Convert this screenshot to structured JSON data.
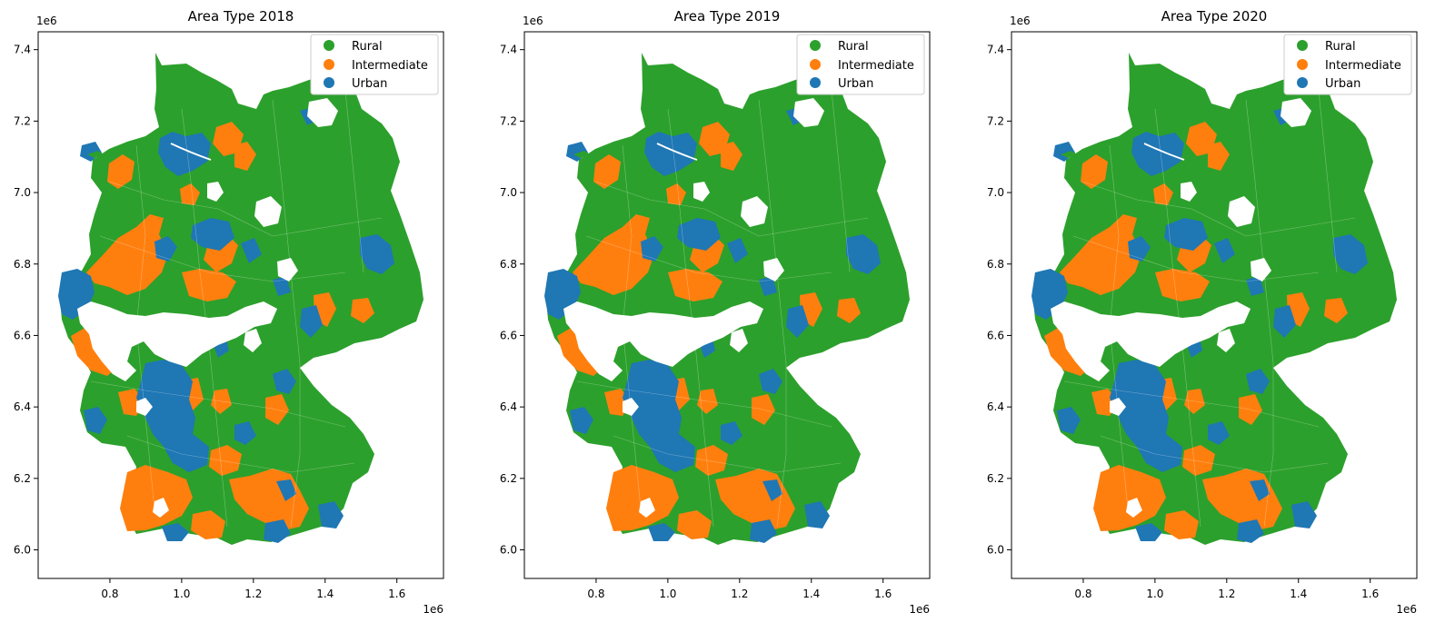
{
  "figure": {
    "legend_entries": [
      {
        "label": "Rural",
        "color": "#2ca02c"
      },
      {
        "label": "Intermediate",
        "color": "#ff7f0e"
      },
      {
        "label": "Urban",
        "color": "#1f77b4"
      }
    ],
    "x_offset_label": "1e6",
    "y_offset_label": "1e6",
    "panels": [
      {
        "title": "Area Type 2018"
      },
      {
        "title": "Area Type 2019"
      },
      {
        "title": "Area Type 2020"
      }
    ]
  },
  "chart_data": {
    "type": "choropleth-map",
    "x_ticks": [
      "0.8",
      "1.0",
      "1.2",
      "1.4",
      "1.6"
    ],
    "y_ticks": [
      "7.4",
      "7.2",
      "7.0",
      "6.8",
      "6.6",
      "6.4",
      "6.2",
      "6.0"
    ],
    "x_tick_values": [
      0.8,
      1.0,
      1.2,
      1.4,
      1.6
    ],
    "y_tick_values": [
      7.4,
      7.2,
      7.0,
      6.8,
      6.6,
      6.4,
      6.2,
      6.0
    ],
    "xlim": [
      0.6,
      1.73
    ],
    "ylim": [
      5.92,
      7.45
    ],
    "legend_position": "upper-right",
    "grid": false,
    "categories": [
      "Rural",
      "Intermediate",
      "Urban"
    ]
  }
}
